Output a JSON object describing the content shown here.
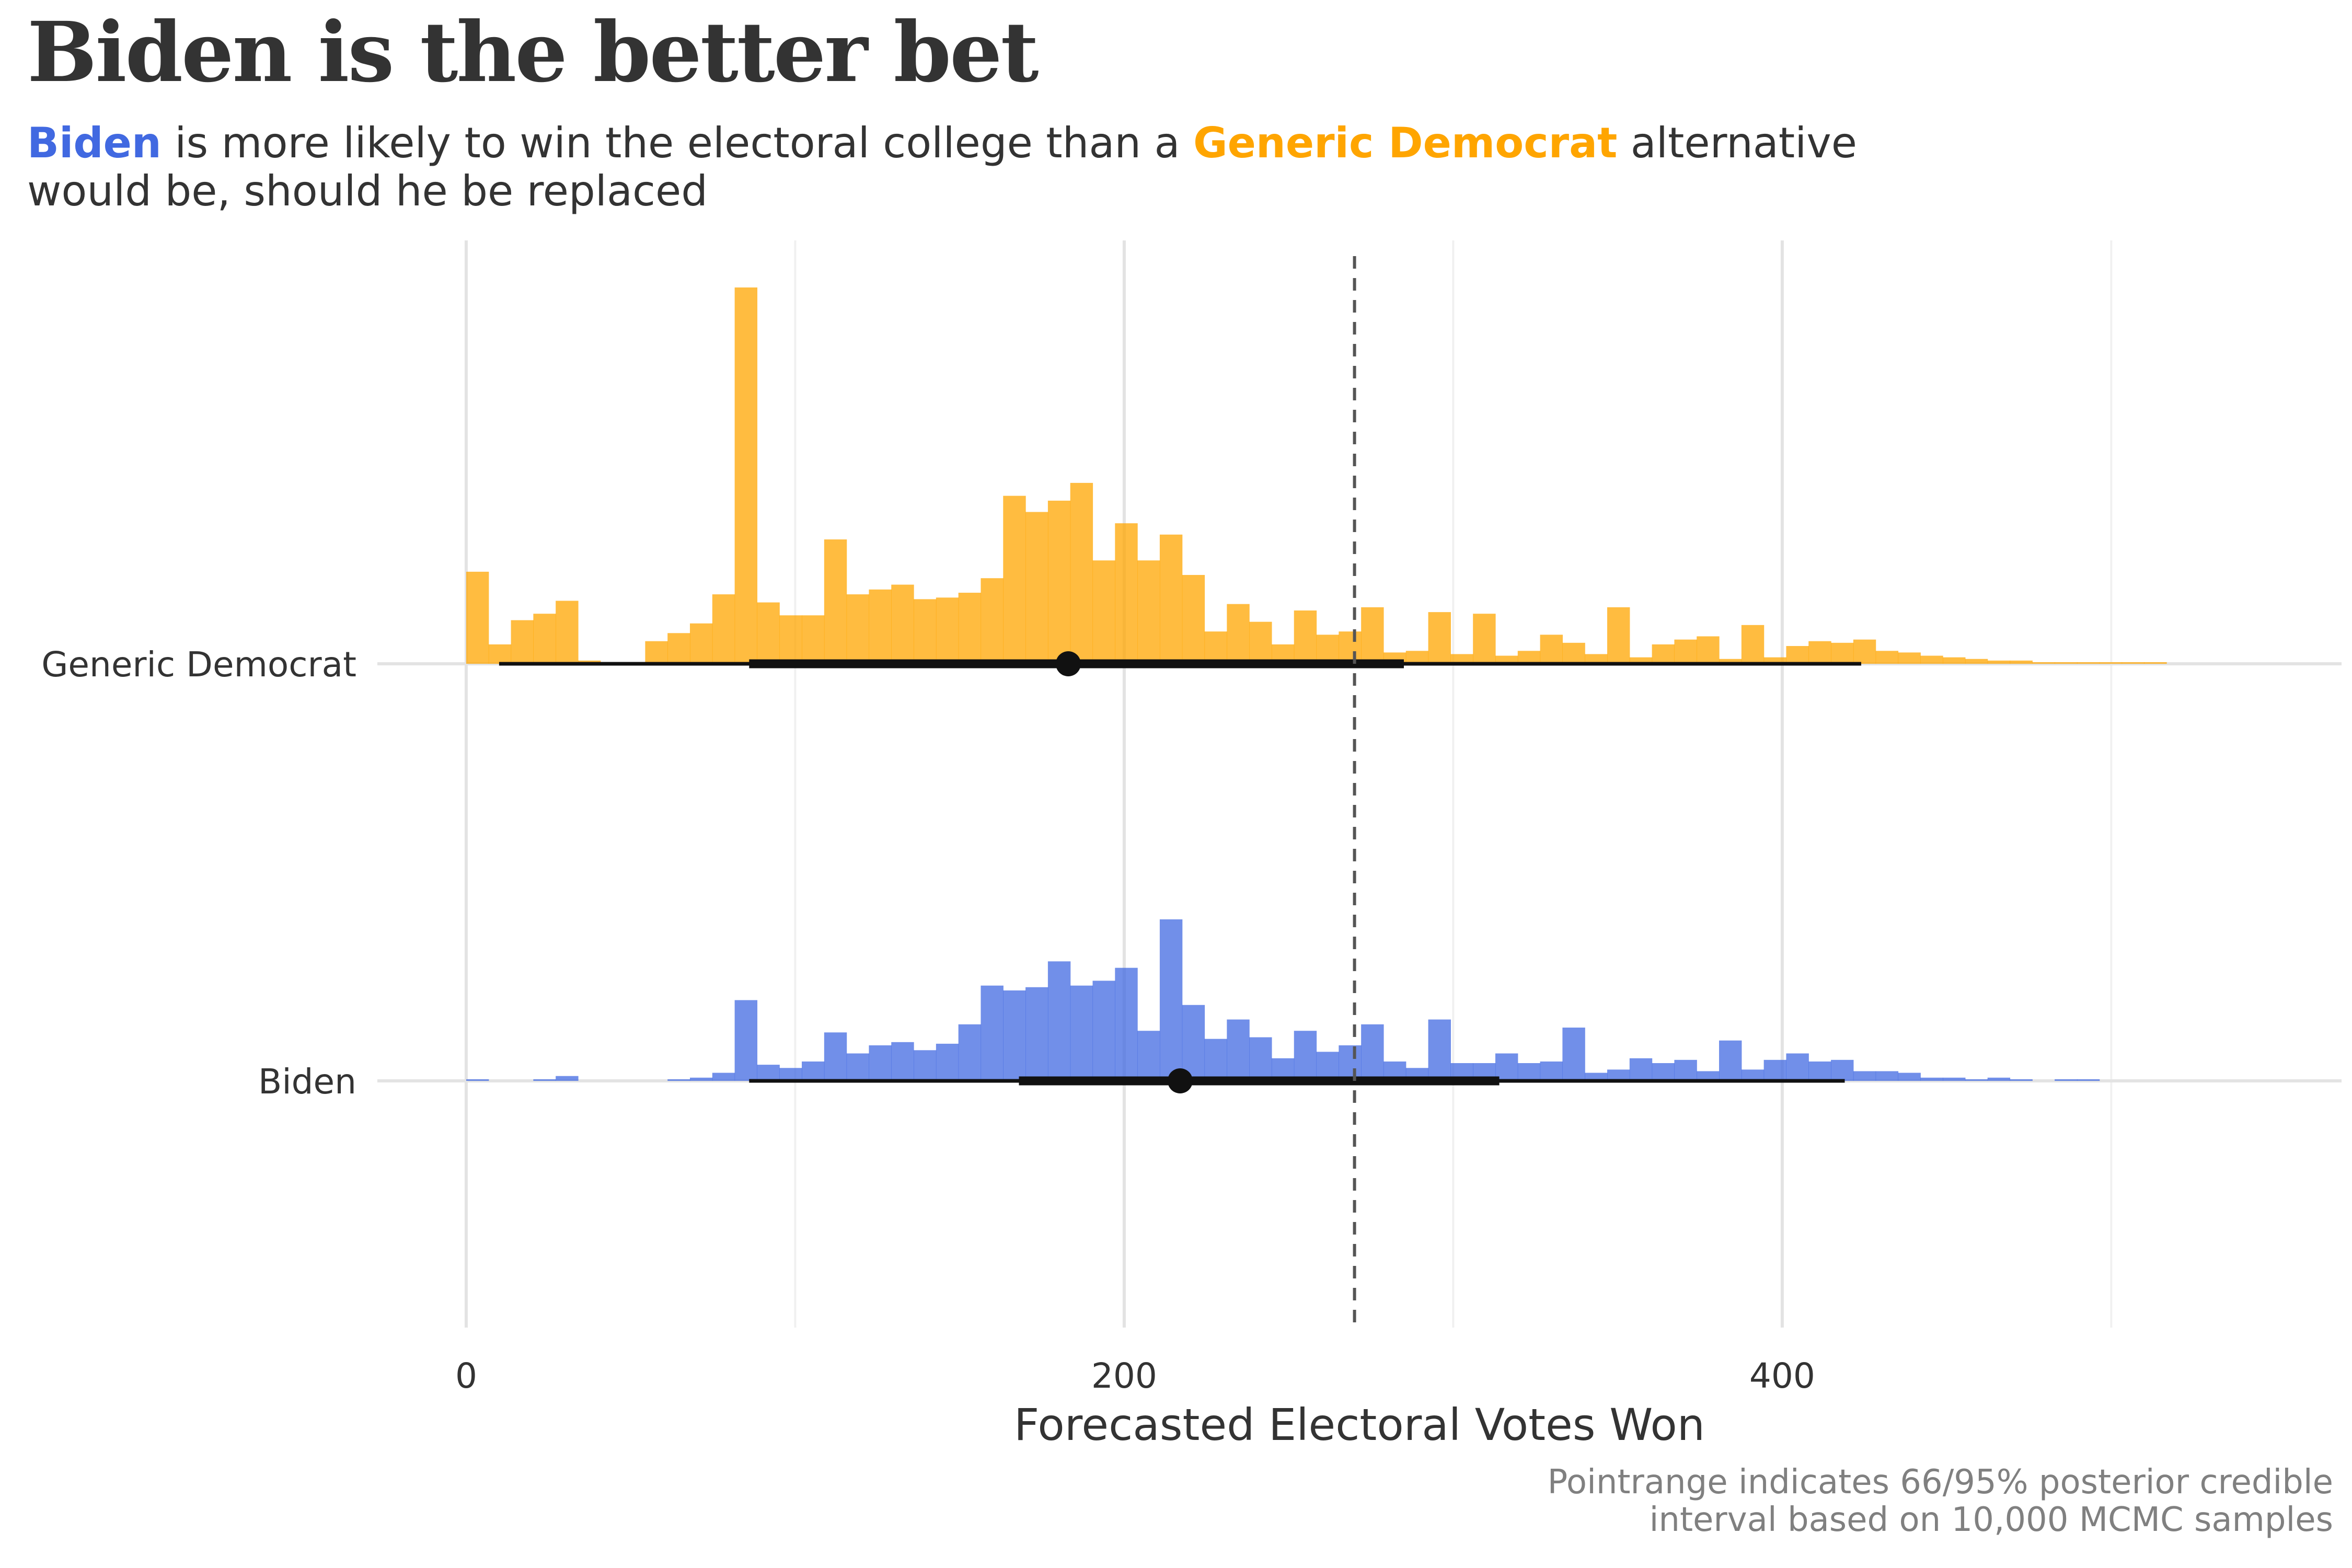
{
  "chart_data": {
    "type": "histogram",
    "title": "Biden is the better bet",
    "subtitle": {
      "biden_label": "Biden",
      "text_mid": " is more likely to win the electoral college than a ",
      "generic_label": "Generic Democrat",
      "text_end": " alternative would be, should he be replaced"
    },
    "xlabel": "Forecasted Electoral Votes Won",
    "xlim": [
      -27,
      570
    ],
    "x_ticks": [
      0,
      200,
      400
    ],
    "x_minor_gridlines": [
      100,
      300,
      500
    ],
    "reference_line": 270,
    "bin_width": 6.8,
    "grid": true,
    "legend": "none",
    "caption": [
      "Pointrange indicates 66/95% posterior credible",
      "interval based on 10,000 MCMC samples"
    ],
    "series": [
      {
        "name": "Generic Democrat",
        "color": "#FFA500",
        "bins_start": 0,
        "counts": [
          57,
          12,
          27,
          31,
          39,
          2,
          0,
          1,
          14,
          19,
          25,
          43,
          233,
          38,
          30,
          30,
          77,
          43,
          46,
          49,
          40,
          41,
          44,
          53,
          104,
          94,
          101,
          112,
          64,
          87,
          64,
          80,
          55,
          20,
          37,
          26,
          12,
          33,
          18,
          20,
          35,
          7,
          8,
          32,
          6,
          31,
          5,
          8,
          18,
          13,
          6,
          35,
          4,
          12,
          15,
          17,
          3,
          24,
          4,
          11,
          14,
          13,
          15,
          8,
          7,
          5,
          4,
          3,
          2,
          2,
          1,
          1,
          1,
          1,
          1,
          1,
          0
        ],
        "interval_66": [
          86,
          285
        ],
        "interval_95": [
          10,
          424
        ],
        "point": 183
      },
      {
        "name": "Biden",
        "color": "#4169E1",
        "bins_start": 0,
        "counts": [
          1,
          0,
          0,
          1,
          3,
          0,
          0,
          0,
          0,
          1,
          2,
          5,
          50,
          10,
          8,
          12,
          30,
          17,
          22,
          24,
          19,
          23,
          35,
          59,
          56,
          58,
          74,
          59,
          62,
          70,
          31,
          100,
          47,
          26,
          38,
          27,
          14,
          31,
          18,
          22,
          35,
          12,
          8,
          38,
          11,
          11,
          17,
          11,
          12,
          33,
          5,
          7,
          14,
          11,
          13,
          6,
          25,
          7,
          13,
          17,
          12,
          13,
          6,
          6,
          5,
          2,
          2,
          1,
          2,
          1,
          0,
          1,
          1,
          0
        ],
        "interval_66": [
          168,
          314
        ],
        "interval_95": [
          86,
          419
        ],
        "point": 217
      }
    ]
  }
}
